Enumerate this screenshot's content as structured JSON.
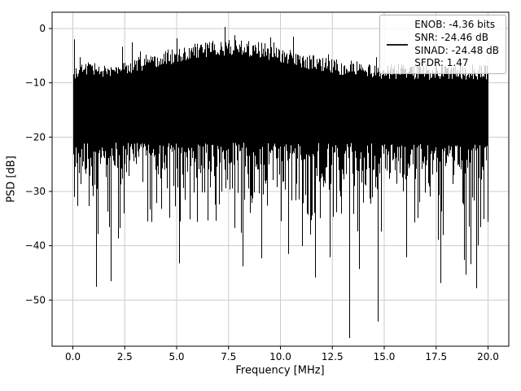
{
  "figure": {
    "background": "#ffffff"
  },
  "chart_data": {
    "type": "line",
    "title": "",
    "xlabel": "Frequency [MHz]",
    "ylabel": "PSD [dB]",
    "xlim": [
      -1,
      21
    ],
    "ylim": [
      -58.5,
      3
    ],
    "grid": true,
    "grid_color": "#cccccc",
    "axes_color": "#000000",
    "x_ticks": {
      "values": [
        0,
        2.5,
        5,
        7.5,
        10,
        12.5,
        15,
        17.5,
        20
      ],
      "labels": [
        "0.0",
        "2.5",
        "5.0",
        "7.5",
        "10.0",
        "12.5",
        "15.0",
        "17.5",
        "20.0"
      ]
    },
    "y_ticks": {
      "values": [
        0,
        -10,
        -20,
        -30,
        -40,
        -50
      ],
      "labels": [
        "0",
        "−10",
        "−20",
        "−30",
        "−40",
        "−50"
      ]
    },
    "legend": {
      "position": "upper right",
      "frame_alpha": 0.8,
      "handle_color": "#000000",
      "lines": [
        "ENOB: -4.36 bits",
        "SNR: -24.46 dB",
        "SINAD: -24.48 dB",
        "SFDR: 1.47"
      ]
    },
    "metrics": {
      "enob_bits": -4.36,
      "snr_db": -24.46,
      "sinad_db": -24.48,
      "sfdr": 1.47
    },
    "series": [
      {
        "name": "PSD",
        "color": "#000000",
        "style": "dense-broadband-noise",
        "x_range_mhz": [
          0,
          20
        ],
        "description": "Broadband noise spectrum; dense black mass between about -5 dB and -28 dB with frequent downward spikes to -30..-47 dB",
        "generator": {
          "seed": 12,
          "base_top_db": -9.5,
          "hump_db": 4.5,
          "hump_center_mhz": 7.5,
          "hump_width": 18,
          "top_jitter_db": 3,
          "tall_peak_prob": 0.03,
          "tall_peak_extra_db": [
            2,
            4.5
          ],
          "floor_db": -21,
          "floor_scale_db": 4,
          "deep_prob": 0.1,
          "deep_extra_db": [
            3,
            12
          ],
          "very_deep_prob": 0.008,
          "very_deep_db": [
            -40,
            -48
          ]
        },
        "key_features": [
          {
            "x_mhz": 0.05,
            "top_db": -2,
            "bottom_db": -31
          },
          {
            "x_mhz": 7.3,
            "top_db": 0.3,
            "bottom_db": -26
          },
          {
            "x_mhz": 13.3,
            "top_db": -8,
            "bottom_db": -57
          }
        ]
      }
    ]
  }
}
